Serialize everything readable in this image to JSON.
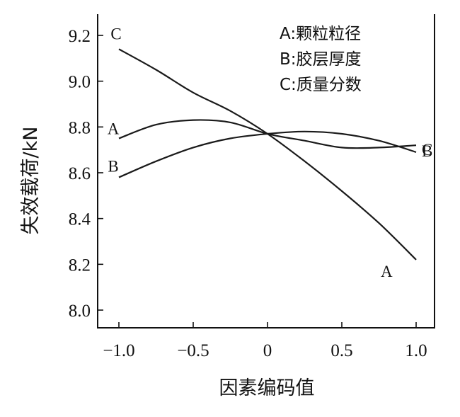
{
  "chart_data": {
    "type": "line",
    "title": "",
    "xlabel": "因素编码值",
    "ylabel": "失效载荷/kN",
    "xlim": [
      -1.1,
      1.1
    ],
    "ylim": [
      7.93,
      9.3
    ],
    "x_ticks": [
      -1.0,
      -0.5,
      0,
      0.5,
      1.0
    ],
    "x_tick_labels": [
      "−1.0",
      "−0.5",
      "0",
      "0.5",
      "1.0"
    ],
    "y_ticks": [
      8.0,
      8.2,
      8.4,
      8.6,
      8.8,
      9.0,
      9.2
    ],
    "y_tick_labels": [
      "8.0",
      "8.2",
      "8.4",
      "8.6",
      "8.8",
      "9.0",
      "9.2"
    ],
    "grid": false,
    "legend": {
      "position": "top-right",
      "entries": [
        "A:颗粒粒径",
        "B:胶层厚度",
        "C:质量分数"
      ]
    },
    "series": [
      {
        "name": "A",
        "x": [
          -1.0,
          -0.75,
          -0.5,
          -0.25,
          0,
          0.25,
          0.5,
          0.75,
          1.0
        ],
        "values": [
          8.75,
          8.81,
          8.83,
          8.82,
          8.77,
          8.74,
          8.71,
          8.71,
          8.72
        ],
        "start_label": "A",
        "end_label": "C"
      },
      {
        "name": "B",
        "x": [
          -1.0,
          -0.75,
          -0.5,
          -0.25,
          0,
          0.25,
          0.5,
          0.75,
          1.0
        ],
        "values": [
          8.58,
          8.65,
          8.71,
          8.75,
          8.77,
          8.78,
          8.77,
          8.74,
          8.69
        ],
        "start_label": "B",
        "end_label": "B"
      },
      {
        "name": "C",
        "x": [
          -1.0,
          -0.75,
          -0.5,
          -0.25,
          0,
          0.25,
          0.5,
          0.75,
          1.0
        ],
        "values": [
          9.14,
          9.05,
          8.95,
          8.87,
          8.77,
          8.65,
          8.52,
          8.38,
          8.22
        ],
        "start_label": "C",
        "end_label": "A"
      }
    ]
  }
}
